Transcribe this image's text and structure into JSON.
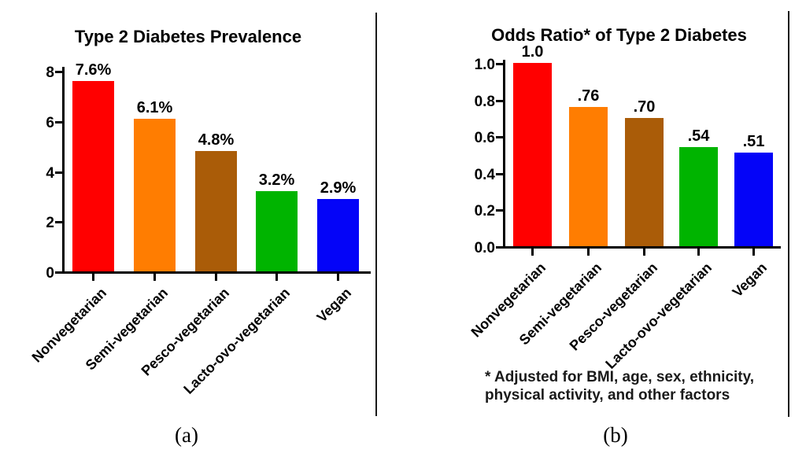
{
  "figure": {
    "panel_a_label": "(a)",
    "panel_b_label": "(b)"
  },
  "chart_data": [
    {
      "type": "bar",
      "title": "Type 2 Diabetes Prevalence",
      "categories": [
        "Nonvegetarian",
        "Semi-vegetarian",
        "Pesco-vegetarian",
        "Lacto-ovo-vegetarian",
        "Vegan"
      ],
      "values": [
        7.6,
        6.1,
        4.8,
        3.2,
        2.9
      ],
      "value_labels": [
        "7.6%",
        "6.1%",
        "4.8%",
        "3.2%",
        "2.9%"
      ],
      "bar_colors": [
        "#ff0000",
        "#ff7d01",
        "#aa5c08",
        "#00b400",
        "#0404f8"
      ],
      "axis_color": "#000000",
      "ylim": [
        0,
        8
      ],
      "y_tick_values": [
        0,
        2,
        4,
        6,
        8
      ],
      "y_tick_labels": [
        "0",
        "2",
        "4",
        "6",
        "8"
      ],
      "xlabel": "",
      "ylabel": "",
      "grid": false,
      "legend": false
    },
    {
      "type": "bar",
      "title": "Odds Ratio* of Type 2 Diabetes",
      "categories": [
        "Nonvegetarian",
        "Semi-vegetarian",
        "Pesco-vegetarian",
        "Lacto-ovo-vegetarian",
        "Vegan"
      ],
      "values": [
        1.0,
        0.76,
        0.7,
        0.54,
        0.51
      ],
      "value_labels": [
        "1.0",
        ".76",
        ".70",
        ".54",
        ".51"
      ],
      "bar_colors": [
        "#ff0000",
        "#ff7d01",
        "#aa5c08",
        "#00b400",
        "#0404f8"
      ],
      "axis_color": "#000000",
      "ylim": [
        0,
        1.0
      ],
      "y_tick_values": [
        0,
        0.2,
        0.4,
        0.6,
        0.8,
        1.0
      ],
      "y_tick_labels": [
        "0.0",
        "0.2",
        "0.4",
        "0.6",
        "0.8",
        "1.0"
      ],
      "footnote_line1": "* Adjusted for BMI, age, sex, ethnicity,",
      "footnote_line2": "physical activity, and other factors",
      "xlabel": "",
      "ylabel": "",
      "grid": false,
      "legend": false
    }
  ]
}
